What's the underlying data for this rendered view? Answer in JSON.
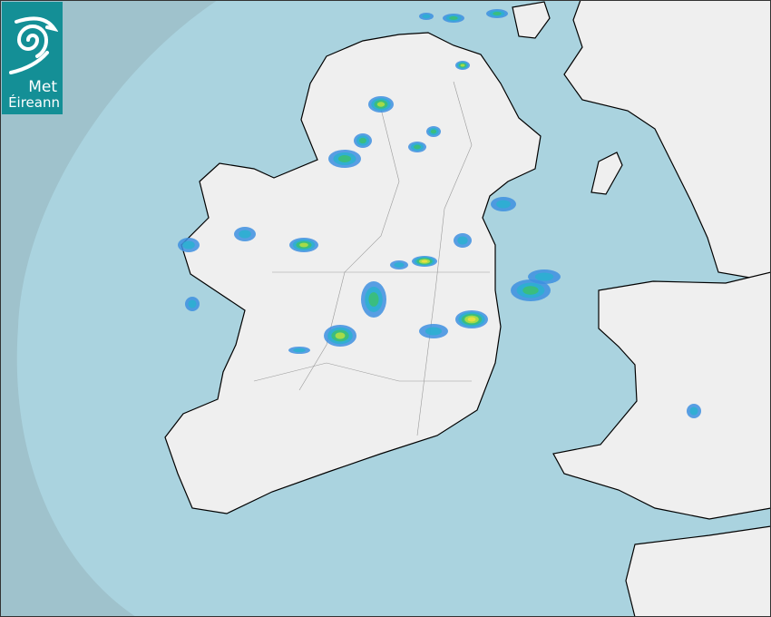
{
  "brand": {
    "line1": "Met",
    "line2": "Éireann",
    "color": "#148f96"
  },
  "map": {
    "type": "rain-radar",
    "colors": {
      "outside_coverage": "#9fc2cc",
      "sea": "#aad3df",
      "land": "#f2f2f2",
      "border": "#000000",
      "counties": "#888888"
    },
    "precip_colors": [
      "#3d8fe0",
      "#2ab0d0",
      "#3cc070",
      "#b8e040",
      "#f0e040"
    ]
  }
}
